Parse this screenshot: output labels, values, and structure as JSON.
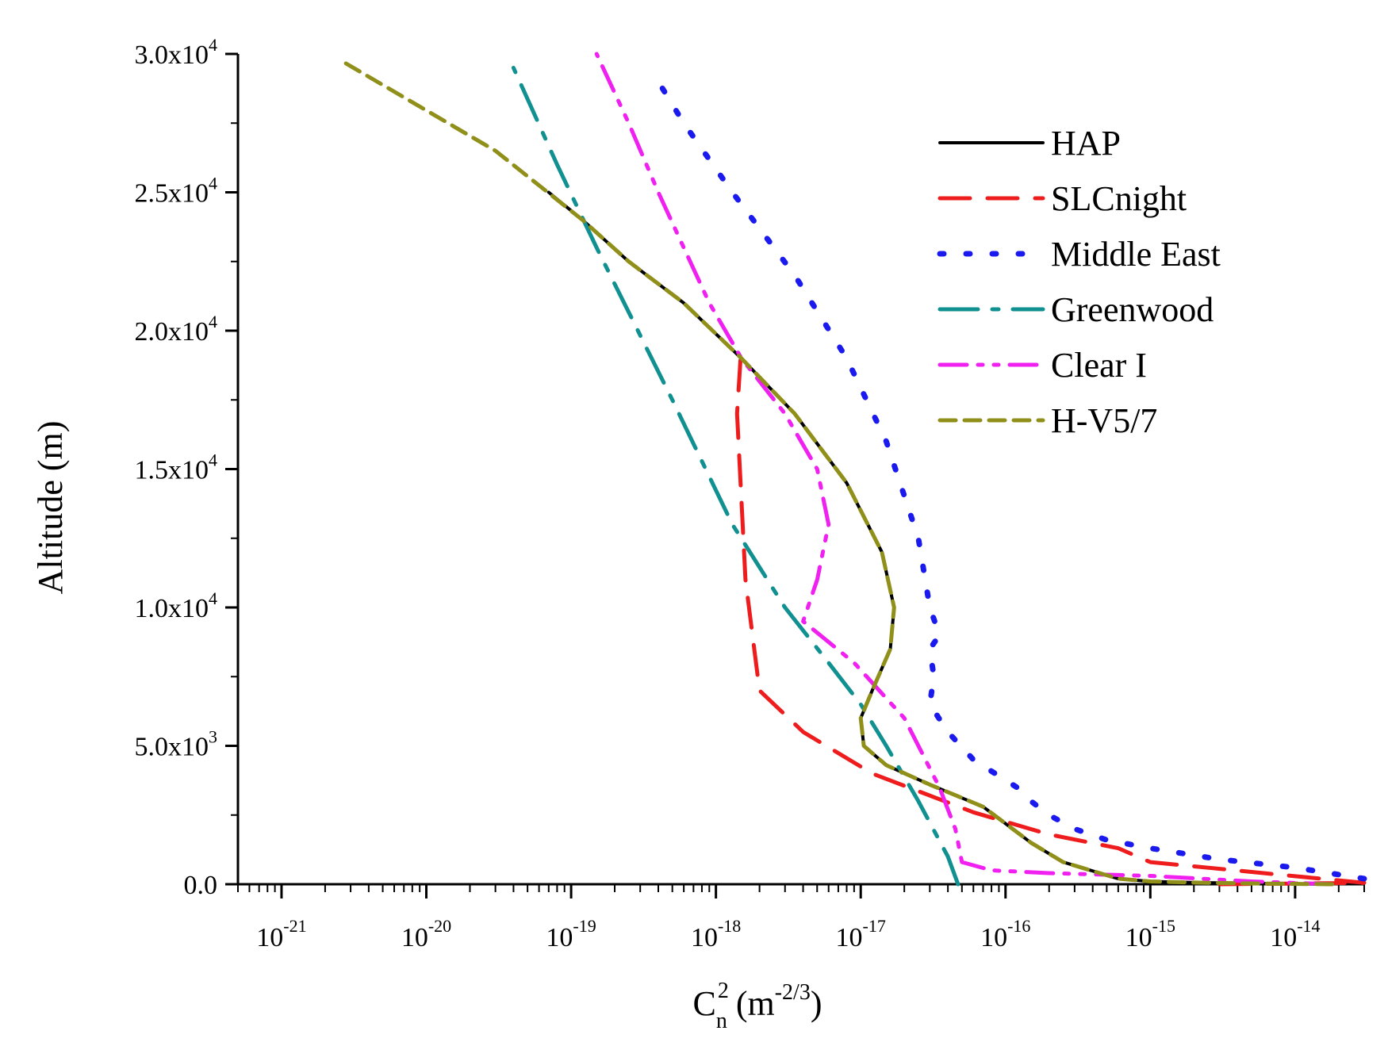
{
  "chart_data": {
    "type": "line",
    "xlabel": "C_n^2 (m^-2/3)",
    "xlabel_parts": {
      "main": "C",
      "sup": "2",
      "sub": "n",
      "unit_open": " (m",
      "unit_sup": "-2/3",
      "unit_close": ")"
    },
    "ylabel": "Altitude (m)",
    "xscale": "log",
    "xlim": [
      5e-22,
      3e-14
    ],
    "ylim": [
      0,
      30000
    ],
    "x_ticks": [
      {
        "value": 1e-21,
        "base": "10",
        "exp": "-21"
      },
      {
        "value": 1e-20,
        "base": "10",
        "exp": "-20"
      },
      {
        "value": 1e-19,
        "base": "10",
        "exp": "-19"
      },
      {
        "value": 1e-18,
        "base": "10",
        "exp": "-18"
      },
      {
        "value": 1e-17,
        "base": "10",
        "exp": "-17"
      },
      {
        "value": 1e-16,
        "base": "10",
        "exp": "-16"
      },
      {
        "value": 1e-15,
        "base": "10",
        "exp": "-15"
      },
      {
        "value": 1e-14,
        "base": "10",
        "exp": "-14"
      }
    ],
    "y_ticks": [
      {
        "value": 0,
        "mant": "0.0",
        "exp": ""
      },
      {
        "value": 5000,
        "mant": "5.0x10",
        "exp": "3"
      },
      {
        "value": 10000,
        "mant": "1.0x10",
        "exp": "4"
      },
      {
        "value": 15000,
        "mant": "1.5x10",
        "exp": "4"
      },
      {
        "value": 20000,
        "mant": "2.0x10",
        "exp": "4"
      },
      {
        "value": 25000,
        "mant": "2.5x10",
        "exp": "4"
      },
      {
        "value": 30000,
        "mant": "3.0x10",
        "exp": "4"
      }
    ],
    "legend_position": "top-right",
    "grid": false,
    "series": [
      {
        "name": "HAP",
        "color": "#000000",
        "dash": "solid",
        "width": 4,
        "x": [
          1.8e-14,
          5e-15,
          2e-15,
          1e-15,
          6e-16,
          2.5e-16,
          1.5e-16,
          7e-17,
          3e-17,
          1.5e-17,
          1.05e-17,
          1e-17,
          1.2e-17,
          1.6e-17,
          1.7e-17,
          1.4e-17,
          8e-18,
          3.5e-18,
          1.5e-18,
          6e-19,
          2.5e-19,
          1.2e-19,
          7e-20
        ],
        "y": [
          0,
          30,
          60,
          100,
          200,
          800,
          1500,
          2800,
          3600,
          4300,
          5000,
          6000,
          7000,
          8500,
          10000,
          12000,
          14500,
          17000,
          19000,
          21000,
          22500,
          24000,
          25000
        ]
      },
      {
        "name": "SLCnight",
        "color": "#ee1c1c",
        "dash": "38 22",
        "width": 5,
        "x": [
          3e-15,
          3e-14,
          1e-15,
          6e-16,
          2e-16,
          6e-17,
          1.2e-17,
          4e-18,
          2e-18,
          1.6e-18,
          1.4e-18,
          1.5e-18
        ],
        "y": [
          0,
          50,
          800,
          1300,
          1800,
          2600,
          4000,
          5500,
          7000,
          11000,
          17000,
          19500
        ]
      },
      {
        "name": "Middle East",
        "color": "#1a1aee",
        "dash": "5 28",
        "width": 7,
        "x": [
          3e-14,
          1e-14,
          3e-15,
          1e-15,
          5e-16,
          3e-16,
          2e-16,
          1.5e-16,
          1.2e-16,
          6e-17,
          4e-17,
          3e-17,
          3.2e-17,
          3e-17,
          3.5e-17,
          3e-17,
          2.5e-17,
          1.5e-17,
          8e-18,
          3.5e-18,
          1.3e-18,
          6e-19,
          4e-19
        ],
        "y": [
          200,
          600,
          900,
          1300,
          1600,
          2000,
          2500,
          3000,
          3500,
          4500,
          5500,
          6500,
          7500,
          8500,
          9000,
          10000,
          12500,
          16000,
          19000,
          22000,
          25000,
          27500,
          29000
        ]
      },
      {
        "name": "Greenwood",
        "color": "#109090",
        "dash": "48 18 8 18",
        "width": 5,
        "x": [
          4.7e-17,
          4e-17,
          2.5e-17,
          1.5e-17,
          1e-17,
          6e-18,
          3e-18,
          1.3e-18,
          5e-19,
          1.5e-19,
          8e-20,
          4e-20
        ],
        "y": [
          0,
          1000,
          3000,
          5000,
          6500,
          8000,
          10000,
          13000,
          17500,
          23000,
          26000,
          29500
        ]
      },
      {
        "name": "Clear I",
        "color": "#f020f0",
        "dash": "34 14 6 14 6 14",
        "width": 5,
        "x": [
          1.8e-14,
          5e-15,
          1e-15,
          2e-16,
          8e-17,
          5e-17,
          4.5e-17,
          3.5e-17,
          2e-17,
          9e-18,
          4e-18,
          5e-18,
          6e-18,
          5e-18,
          3e-18,
          1.5e-18,
          9e-19,
          6e-19,
          4e-19,
          2.5e-19,
          1.5e-19
        ],
        "y": [
          0,
          100,
          300,
          400,
          500,
          800,
          2000,
          3500,
          6000,
          8000,
          9500,
          11000,
          13000,
          15000,
          17000,
          19000,
          21000,
          23000,
          25000,
          27500,
          30000
        ]
      },
      {
        "name": "H-V5/7",
        "color": "#8f8f1a",
        "dash": "20 11",
        "width": 5,
        "x": [
          1.8e-14,
          5e-15,
          2e-15,
          1e-15,
          6e-16,
          2.5e-16,
          1.5e-16,
          7e-17,
          3e-17,
          1.5e-17,
          1.05e-17,
          1e-17,
          1.2e-17,
          1.6e-17,
          1.7e-17,
          1.4e-17,
          8e-18,
          3.5e-18,
          1.5e-18,
          6e-19,
          2.5e-19,
          1.2e-19,
          3e-20,
          2.5e-21
        ],
        "y": [
          0,
          30,
          60,
          100,
          200,
          800,
          1500,
          2800,
          3600,
          4300,
          5000,
          6000,
          7000,
          8500,
          10000,
          12000,
          14500,
          17000,
          19000,
          21000,
          22500,
          24000,
          26500,
          29800
        ]
      }
    ]
  }
}
